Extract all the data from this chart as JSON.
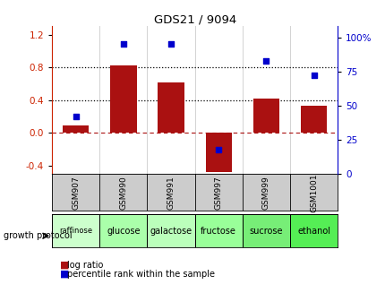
{
  "title": "GDS21 / 9094",
  "samples": [
    "GSM907",
    "GSM990",
    "GSM991",
    "GSM997",
    "GSM999",
    "GSM1001"
  ],
  "protocols": [
    "raffinose",
    "glucose",
    "galactose",
    "fructose",
    "sucrose",
    "ethanol"
  ],
  "log_ratio": [
    0.09,
    0.82,
    0.62,
    -0.48,
    0.42,
    0.33
  ],
  "percentile_rank": [
    42,
    95,
    95,
    18,
    83,
    72
  ],
  "bar_color": "#AA1111",
  "dot_color": "#0000CC",
  "ylim_left": [
    -0.5,
    1.3
  ],
  "ylim_right": [
    0,
    108
  ],
  "yticks_left": [
    -0.4,
    0.0,
    0.4,
    0.8,
    1.2
  ],
  "yticks_right": [
    0,
    25,
    50,
    75,
    100
  ],
  "ytick_labels_right": [
    "0",
    "25",
    "50",
    "75",
    "100%"
  ],
  "hline_y": [
    0.4,
    0.8
  ],
  "hline_zero_y": 0.0,
  "protocol_colors": [
    "#ccffcc",
    "#aaffaa",
    "#bbffbb",
    "#99ff99",
    "#77ee77",
    "#55ee55"
  ],
  "growth_protocol_label": "growth protocol",
  "legend_labels": [
    "log ratio",
    "percentile rank within the sample"
  ],
  "legend_colors": [
    "#AA1111",
    "#0000CC"
  ],
  "axis_color_left": "#CC2200",
  "axis_color_right": "#0000CC",
  "gsm_bg_color": "#cccccc",
  "bar_width": 0.55,
  "xlim": [
    -0.5,
    5.5
  ]
}
